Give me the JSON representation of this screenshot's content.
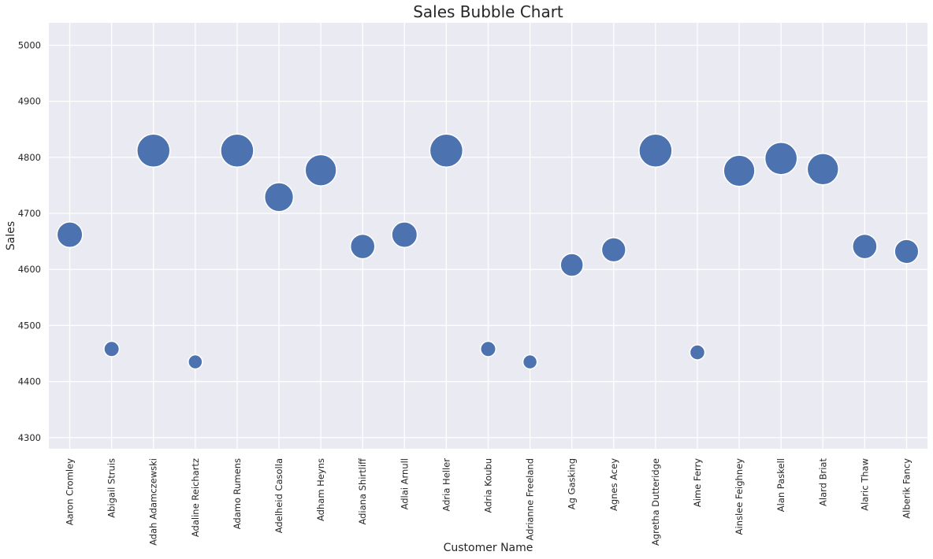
{
  "chart_data": {
    "type": "scatter",
    "title": "Sales Bubble Chart",
    "xlabel": "Customer Name",
    "ylabel": "Sales",
    "categories": [
      "Aaron Cromley",
      "Abigail Struis",
      "Adah Adamczewski",
      "Adaline Reichartz",
      "Adamo Rumens",
      "Adelheid Casolla",
      "Adham Heyns",
      "Adiana Shirtliff",
      "Adlai Arnull",
      "Adria Heller",
      "Adria Koubu",
      "Adrianne Freeland",
      "Ag Gasking",
      "Agnes Acey",
      "Agretha Dutteridge",
      "Aime Ferry",
      "Ainslee Feighney",
      "Alan Paskell",
      "Alard Briat",
      "Alaric Thaw",
      "Alberik Fancy"
    ],
    "values": [
      4662,
      4458,
      4812,
      4435,
      4812,
      4729,
      4777,
      4641,
      4662,
      4812,
      4458,
      4435,
      4608,
      4635,
      4812,
      4452,
      4776,
      4798,
      4779,
      4641,
      4632
    ],
    "ylim": [
      4280,
      5040
    ],
    "yticks": [
      "4300",
      "4400",
      "4500",
      "4600",
      "4700",
      "4800",
      "4900",
      "5000"
    ],
    "grid": true,
    "color": "#4c72b0",
    "background": "#eaeaf2"
  }
}
